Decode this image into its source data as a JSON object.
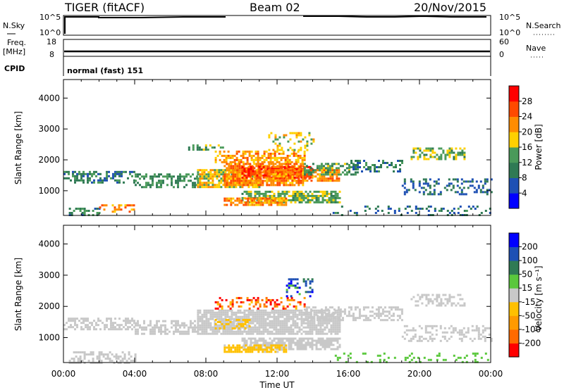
{
  "header": {
    "title": "TIGER (fitACF)",
    "beam": "Beam 02",
    "date": "20/Nov/2015"
  },
  "top_panel": {
    "nsky_label": "N.Sky",
    "nsky_ticks": [
      "10^5",
      "10^0"
    ],
    "nsearch_label": "N.Search",
    "nsearch_ticks": [
      "10^5",
      "10^0"
    ],
    "freq_label_1": "Freq.",
    "freq_label_2": "[MHz]",
    "freq_ticks": [
      "18",
      "8"
    ],
    "nave_label": "Nave",
    "nave_ticks": [
      "60",
      "0"
    ],
    "cpid_label": "CPID",
    "cpid_text": "normal (fast) 151"
  },
  "colors": {
    "power": [
      "#0000ff",
      "#1e50b4",
      "#2f7a54",
      "#4a9a5a",
      "#ffd000",
      "#ff8c00",
      "#ff4a00",
      "#ff0000"
    ],
    "velocity": [
      "#ff0000",
      "#ff6a00",
      "#ff9a00",
      "#ffc000",
      "#c8c8c8",
      "#5ac83c",
      "#2f7a54",
      "#1e50b4",
      "#0000ff"
    ]
  },
  "chart_data": [
    {
      "type": "heatmap",
      "panel": "power",
      "ylabel": "Slant Range [km]",
      "xlabel": "Time UT",
      "xticks": [
        "00:00",
        "04:00",
        "08:00",
        "12:00",
        "16:00",
        "20:00",
        "00:00"
      ],
      "xlim_hours": [
        0,
        24
      ],
      "yticks": [
        1000,
        2000,
        3000,
        4000
      ],
      "ylim": [
        200,
        4600
      ],
      "colorbar": {
        "label": "Power [dB]",
        "ticks": [
          4,
          8,
          12,
          16,
          20,
          24,
          28
        ],
        "range": [
          0,
          32
        ]
      },
      "regions": [
        {
          "t": [
            0.0,
            4.0
          ],
          "r": [
            1240,
            1640
          ],
          "v": 10,
          "density": 0.55
        },
        {
          "t": [
            4.0,
            7.5
          ],
          "r": [
            1120,
            1560
          ],
          "v": 12,
          "density": 0.55
        },
        {
          "t": [
            7.5,
            11.0
          ],
          "r": [
            1100,
            1700
          ],
          "v": 18,
          "density": 0.8
        },
        {
          "t": [
            9.0,
            13.5
          ],
          "r": [
            1180,
            1900
          ],
          "v": 23,
          "density": 0.85
        },
        {
          "t": [
            10.0,
            14.0
          ],
          "r": [
            1450,
            1800
          ],
          "v": 27,
          "density": 0.7
        },
        {
          "t": [
            11.5,
            15.5
          ],
          "r": [
            1350,
            1700
          ],
          "v": 22,
          "density": 0.65
        },
        {
          "t": [
            8.5,
            13.5
          ],
          "r": [
            1900,
            2300
          ],
          "v": 21,
          "density": 0.55
        },
        {
          "t": [
            13.5,
            16.5
          ],
          "r": [
            1550,
            1900
          ],
          "v": 13,
          "density": 0.5
        },
        {
          "t": [
            16.0,
            19.0
          ],
          "r": [
            1650,
            2000
          ],
          "v": 10,
          "density": 0.4
        },
        {
          "t": [
            10.0,
            15.5
          ],
          "r": [
            650,
            1000
          ],
          "v": 15,
          "density": 0.75
        },
        {
          "t": [
            9.0,
            12.5
          ],
          "r": [
            560,
            780
          ],
          "v": 22,
          "density": 0.7
        },
        {
          "t": [
            7.0,
            9.0
          ],
          "r": [
            2300,
            2500
          ],
          "v": 13,
          "density": 0.5
        },
        {
          "t": [
            11.5,
            14.0
          ],
          "r": [
            2300,
            2900
          ],
          "v": 17,
          "density": 0.35
        },
        {
          "t": [
            19.5,
            22.5
          ],
          "r": [
            2000,
            2400
          ],
          "v": 15,
          "density": 0.55
        },
        {
          "t": [
            19.0,
            24.0
          ],
          "r": [
            900,
            1400
          ],
          "v": 8,
          "density": 0.35
        },
        {
          "t": [
            0.3,
            2.0
          ],
          "r": [
            200,
            450
          ],
          "v": 11,
          "density": 0.5
        },
        {
          "t": [
            2.0,
            4.0
          ],
          "r": [
            320,
            560
          ],
          "v": 22,
          "density": 0.5
        },
        {
          "t": [
            15.0,
            24.0
          ],
          "r": [
            200,
            520
          ],
          "v": 9,
          "density": 0.2
        }
      ]
    },
    {
      "type": "heatmap",
      "panel": "velocity",
      "ylabel": "Slant Range [km]",
      "xlabel": "Time UT",
      "xticks": [
        "00:00",
        "04:00",
        "08:00",
        "12:00",
        "16:00",
        "20:00",
        "00:00"
      ],
      "xlim_hours": [
        0,
        24
      ],
      "yticks": [
        1000,
        2000,
        3000,
        4000
      ],
      "ylim": [
        200,
        4600
      ],
      "colorbar": {
        "label": "Velocity [m s⁻¹]",
        "ticks": [
          "200",
          "100",
          "50",
          "15",
          "-15",
          "-50",
          "-100",
          "-200"
        ]
      },
      "regions": [
        {
          "t": [
            0.0,
            4.0
          ],
          "r": [
            1240,
            1640
          ],
          "v": 0,
          "density": 0.55
        },
        {
          "t": [
            4.0,
            7.5
          ],
          "r": [
            1120,
            1560
          ],
          "v": 0,
          "density": 0.55
        },
        {
          "t": [
            7.5,
            15.5
          ],
          "r": [
            1100,
            1900
          ],
          "v": 0,
          "density": 0.85
        },
        {
          "t": [
            8.5,
            10.5
          ],
          "r": [
            1300,
            1600
          ],
          "v": -20,
          "density": 0.45
        },
        {
          "t": [
            10.0,
            15.5
          ],
          "r": [
            650,
            1000
          ],
          "v": 0,
          "density": 0.75
        },
        {
          "t": [
            9.0,
            12.5
          ],
          "r": [
            560,
            780
          ],
          "v": -25,
          "density": 0.8
        },
        {
          "t": [
            8.5,
            13.5
          ],
          "r": [
            1900,
            2300
          ],
          "v": -150,
          "density": 0.35
        },
        {
          "t": [
            12.5,
            14.0
          ],
          "r": [
            2300,
            2900
          ],
          "v": 150,
          "density": 0.3
        },
        {
          "t": [
            13.5,
            19.0
          ],
          "r": [
            1550,
            2000
          ],
          "v": 0,
          "density": 0.5
        },
        {
          "t": [
            19.0,
            24.0
          ],
          "r": [
            900,
            1400
          ],
          "v": 0,
          "density": 0.35
        },
        {
          "t": [
            19.5,
            22.5
          ],
          "r": [
            2000,
            2400
          ],
          "v": 0,
          "density": 0.45
        },
        {
          "t": [
            0.3,
            4.0
          ],
          "r": [
            200,
            560
          ],
          "v": 0,
          "density": 0.45
        },
        {
          "t": [
            15.0,
            24.0
          ],
          "r": [
            200,
            520
          ],
          "v": 30,
          "density": 0.15
        }
      ]
    }
  ]
}
